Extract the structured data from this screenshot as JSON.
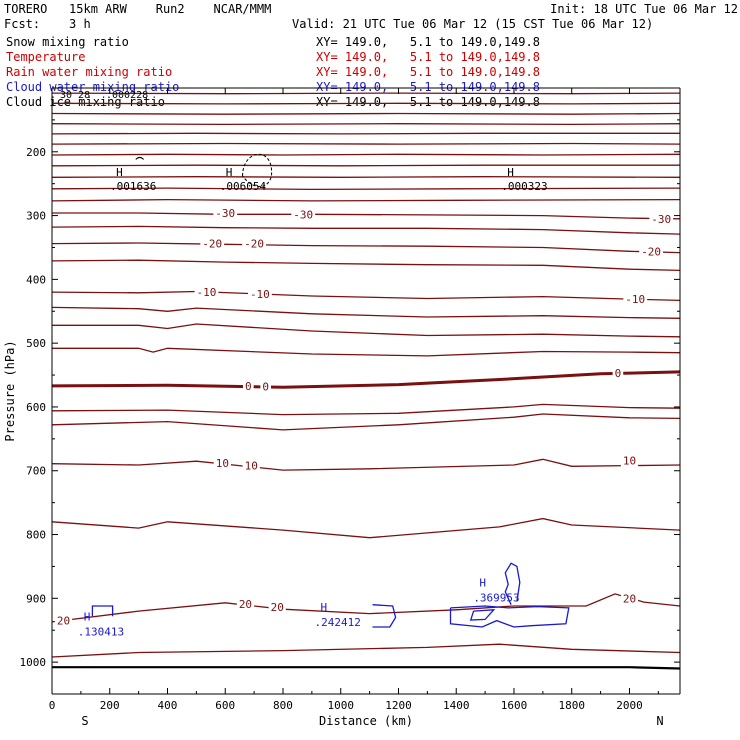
{
  "header": {
    "model": "TORERO   15km ARW    Run2    NCAR/MMM",
    "init": "Init: 18 UTC Tue 06 Mar 12",
    "fcst": "Fcst:    3 h",
    "valid": "Valid: 21 UTC Tue 06 Mar 12 (15 CST Tue 06 Mar 12)"
  },
  "legend": [
    {
      "field": "Snow mixing ratio",
      "xy": "XY= 149.0,   5.1 to 149.0,149.8",
      "color": "#000000"
    },
    {
      "field": "Temperature",
      "xy": "XY= 149.0,   5.1 to 149.0,149.8",
      "color": "#cc0000"
    },
    {
      "field": "Rain water mixing ratio",
      "xy": "XY= 149.0,   5.1 to 149.0,149.8",
      "color": "#cc0000"
    },
    {
      "field": "Cloud water mixing ratio",
      "xy": "XY= 149.0,   5.1 to 149.0,149.8",
      "color": "#1a1acc"
    },
    {
      "field": "Cloud ice mixing ratio",
      "xy": "XY= 149.0,   5.1 to 149.0,149.8",
      "color": "#000000"
    }
  ],
  "overlap_text": {
    "a": "30 28",
    "b": ".000228"
  },
  "colors": {
    "temperature": "#7a1010",
    "cloud_water": "#1a1acc",
    "snow": "#000000",
    "terrain": "#000000"
  },
  "chart_data": {
    "type": "line",
    "xlabel": "Distance (km)",
    "ylabel": "Pressure (hPa)",
    "xlim": [
      0,
      2175
    ],
    "ylim": [
      1050,
      100
    ],
    "x_ticks": [
      0,
      200,
      400,
      600,
      800,
      1000,
      1200,
      1400,
      1600,
      1800,
      2000
    ],
    "y_ticks": [
      200,
      300,
      400,
      500,
      600,
      700,
      800,
      900,
      1000
    ],
    "endpoint_labels": {
      "left": "S",
      "right": "N"
    },
    "temperature_isotherms": [
      {
        "points": [
          [
            0,
            108
          ],
          [
            600,
            109
          ],
          [
            1200,
            108
          ],
          [
            1800,
            109
          ],
          [
            2175,
            108
          ]
        ]
      },
      {
        "points": [
          [
            0,
            124
          ],
          [
            600,
            125
          ],
          [
            1200,
            124
          ],
          [
            1800,
            125
          ],
          [
            2175,
            124
          ]
        ]
      },
      {
        "points": [
          [
            0,
            140
          ],
          [
            600,
            141
          ],
          [
            1200,
            140
          ],
          [
            1800,
            141
          ],
          [
            2175,
            140
          ]
        ]
      },
      {
        "points": [
          [
            0,
            156
          ],
          [
            600,
            157
          ],
          [
            1200,
            156
          ],
          [
            1800,
            157
          ],
          [
            2175,
            156
          ]
        ]
      },
      {
        "points": [
          [
            0,
            172
          ],
          [
            500,
            171
          ],
          [
            1000,
            172
          ],
          [
            1500,
            171
          ],
          [
            2175,
            171
          ]
        ]
      },
      {
        "points": [
          [
            0,
            188
          ],
          [
            600,
            187
          ],
          [
            1200,
            188
          ],
          [
            1800,
            187
          ],
          [
            2175,
            188
          ]
        ]
      },
      {
        "points": [
          [
            0,
            205
          ],
          [
            400,
            204
          ],
          [
            800,
            205
          ],
          [
            1200,
            204
          ],
          [
            1700,
            205
          ],
          [
            2175,
            204
          ]
        ]
      },
      {
        "points": [
          [
            0,
            222
          ],
          [
            500,
            221
          ],
          [
            1000,
            222
          ],
          [
            1500,
            221
          ],
          [
            2175,
            221
          ]
        ]
      },
      {
        "points": [
          [
            0,
            240
          ],
          [
            500,
            239
          ],
          [
            1000,
            240
          ],
          [
            1500,
            239
          ],
          [
            2175,
            240
          ]
        ]
      },
      {
        "points": [
          [
            0,
            258
          ],
          [
            400,
            257
          ],
          [
            900,
            259
          ],
          [
            1400,
            258
          ],
          [
            2175,
            257
          ]
        ]
      },
      {
        "points": [
          [
            0,
            277
          ],
          [
            400,
            275
          ],
          [
            900,
            277
          ],
          [
            1400,
            276
          ],
          [
            2175,
            275
          ]
        ]
      },
      {
        "value": -30,
        "points": [
          [
            0,
            296
          ],
          [
            300,
            296
          ],
          [
            600,
            298
          ],
          [
            900,
            298
          ],
          [
            1300,
            299
          ],
          [
            1700,
            300
          ],
          [
            2000,
            304
          ],
          [
            2175,
            305
          ]
        ]
      },
      {
        "points": [
          [
            0,
            318
          ],
          [
            300,
            317
          ],
          [
            600,
            319
          ],
          [
            900,
            320
          ],
          [
            1300,
            320
          ],
          [
            1700,
            322
          ],
          [
            2000,
            327
          ],
          [
            2175,
            329
          ]
        ]
      },
      {
        "value": -20,
        "points": [
          [
            0,
            344
          ],
          [
            300,
            343
          ],
          [
            600,
            345
          ],
          [
            900,
            347
          ],
          [
            1300,
            348
          ],
          [
            1700,
            350
          ],
          [
            2000,
            356
          ],
          [
            2175,
            358
          ]
        ]
      },
      {
        "points": [
          [
            0,
            371
          ],
          [
            300,
            370
          ],
          [
            600,
            373
          ],
          [
            900,
            375
          ],
          [
            1300,
            377
          ],
          [
            1700,
            378
          ],
          [
            2000,
            384
          ],
          [
            2175,
            386
          ]
        ]
      },
      {
        "value": -10,
        "points": [
          [
            0,
            420
          ],
          [
            300,
            421
          ],
          [
            500,
            419
          ],
          [
            900,
            426
          ],
          [
            1300,
            430
          ],
          [
            1700,
            427
          ],
          [
            2000,
            431
          ],
          [
            2175,
            433
          ]
        ]
      },
      {
        "points": [
          [
            0,
            444
          ],
          [
            300,
            446
          ],
          [
            400,
            450
          ],
          [
            500,
            445
          ],
          [
            900,
            454
          ],
          [
            1300,
            459
          ],
          [
            1700,
            457
          ],
          [
            2000,
            460
          ],
          [
            2175,
            461
          ]
        ]
      },
      {
        "points": [
          [
            0,
            472
          ],
          [
            300,
            472
          ],
          [
            400,
            477
          ],
          [
            500,
            470
          ],
          [
            900,
            481
          ],
          [
            1300,
            488
          ],
          [
            1700,
            486
          ],
          [
            2000,
            489
          ],
          [
            2175,
            490
          ]
        ]
      },
      {
        "points": [
          [
            0,
            508
          ],
          [
            300,
            508
          ],
          [
            350,
            514
          ],
          [
            400,
            508
          ],
          [
            900,
            517
          ],
          [
            1300,
            520
          ],
          [
            1700,
            513
          ],
          [
            2000,
            514
          ],
          [
            2175,
            515
          ]
        ]
      },
      {
        "value": 0,
        "bold": true,
        "points": [
          [
            0,
            567
          ],
          [
            400,
            566
          ],
          [
            800,
            569
          ],
          [
            1200,
            565
          ],
          [
            1550,
            557
          ],
          [
            1900,
            548
          ],
          [
            2175,
            545
          ]
        ]
      },
      {
        "points": [
          [
            0,
            606
          ],
          [
            400,
            605
          ],
          [
            800,
            612
          ],
          [
            1200,
            610
          ],
          [
            1600,
            600
          ],
          [
            1700,
            596
          ],
          [
            2000,
            601
          ],
          [
            2175,
            602
          ]
        ]
      },
      {
        "points": [
          [
            0,
            628
          ],
          [
            400,
            623
          ],
          [
            800,
            636
          ],
          [
            1200,
            628
          ],
          [
            1600,
            616
          ],
          [
            1700,
            611
          ],
          [
            2000,
            617
          ],
          [
            2175,
            618
          ]
        ]
      },
      {
        "value": 10,
        "points": [
          [
            0,
            689
          ],
          [
            300,
            691
          ],
          [
            500,
            685
          ],
          [
            800,
            699
          ],
          [
            1100,
            697
          ],
          [
            1600,
            691
          ],
          [
            1700,
            682
          ],
          [
            1800,
            693
          ],
          [
            2175,
            691
          ]
        ]
      },
      {
        "points": [
          [
            0,
            780
          ],
          [
            300,
            790
          ],
          [
            400,
            780
          ],
          [
            800,
            793
          ],
          [
            1100,
            805
          ],
          [
            1550,
            788
          ],
          [
            1700,
            775
          ],
          [
            1800,
            785
          ],
          [
            2175,
            793
          ]
        ]
      },
      {
        "value": 20,
        "points": [
          [
            0,
            937
          ],
          [
            300,
            920
          ],
          [
            600,
            907
          ],
          [
            800,
            917
          ],
          [
            1100,
            924
          ],
          [
            1400,
            918
          ],
          [
            1600,
            912
          ],
          [
            1850,
            912
          ],
          [
            1950,
            893
          ],
          [
            2050,
            906
          ],
          [
            2175,
            912
          ]
        ]
      },
      {
        "points": [
          [
            0,
            992
          ],
          [
            300,
            985
          ],
          [
            800,
            982
          ],
          [
            1300,
            977
          ],
          [
            1550,
            972
          ],
          [
            1800,
            980
          ],
          [
            2175,
            985
          ]
        ]
      }
    ],
    "isotherm_labels": [
      {
        "value": "-30",
        "at": [
          600,
          296
        ]
      },
      {
        "value": "-30",
        "at": [
          870,
          298
        ]
      },
      {
        "value": "-30",
        "at": [
          2110,
          305
        ]
      },
      {
        "value": "-20",
        "at": [
          555,
          344
        ]
      },
      {
        "value": "-20",
        "at": [
          700,
          344
        ]
      },
      {
        "value": "-20",
        "at": [
          2075,
          356
        ]
      },
      {
        "value": "-10",
        "at": [
          535,
          420
        ]
      },
      {
        "value": "-10",
        "at": [
          720,
          423
        ]
      },
      {
        "value": "-10",
        "at": [
          2020,
          431
        ]
      },
      {
        "value": "0",
        "at": [
          680,
          567
        ]
      },
      {
        "value": "0",
        "at": [
          740,
          568
        ]
      },
      {
        "value": "0",
        "at": [
          1960,
          547
        ]
      },
      {
        "value": "10",
        "at": [
          590,
          688
        ]
      },
      {
        "value": "10",
        "at": [
          690,
          692
        ]
      },
      {
        "value": "10",
        "at": [
          2000,
          684
        ]
      },
      {
        "value": "20",
        "at": [
          40,
          935
        ]
      },
      {
        "value": "20",
        "at": [
          670,
          909
        ]
      },
      {
        "value": "20",
        "at": [
          780,
          914
        ]
      },
      {
        "value": "20",
        "at": [
          2000,
          900
        ]
      }
    ],
    "snow_maxima": [
      {
        "label": ".001636",
        "at": [
          305,
          255
        ]
      },
      {
        "label": ".006054",
        "at": [
          685,
          255
        ]
      },
      {
        "label": ".000323",
        "at": [
          1660,
          255
        ]
      }
    ],
    "cloud_water_maxima": [
      {
        "label": ".130413",
        "at": [
          200,
          955
        ]
      },
      {
        "label": ".242412",
        "at": [
          1020,
          940
        ]
      },
      {
        "label": ".369953",
        "at": [
          1570,
          902
        ]
      }
    ],
    "surface_pressure": [
      [
        0,
        1008
      ],
      [
        1000,
        1008
      ],
      [
        2000,
        1008
      ],
      [
        2175,
        1010
      ]
    ]
  }
}
